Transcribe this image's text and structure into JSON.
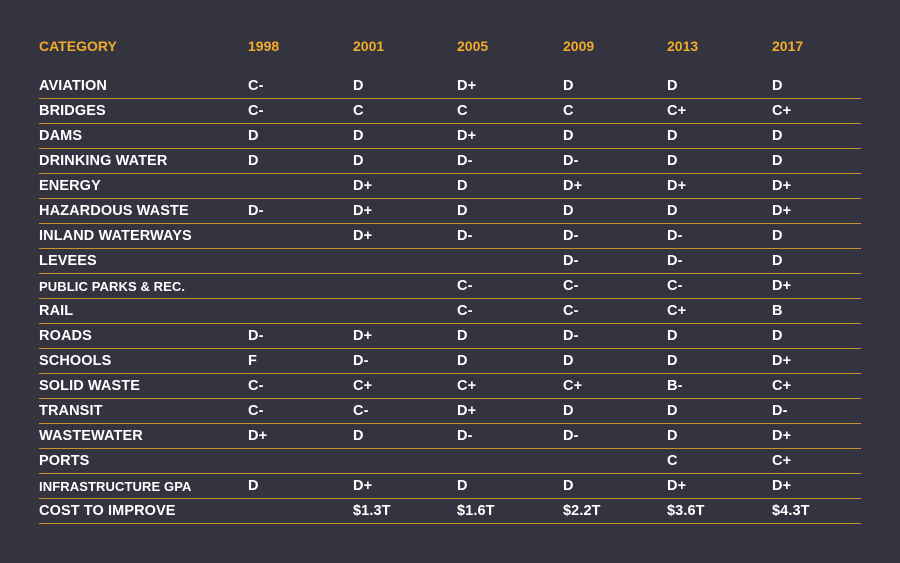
{
  "chart_data": {
    "type": "table",
    "columns": [
      "CATEGORY",
      "1998",
      "2001",
      "2005",
      "2009",
      "2013",
      "2017"
    ],
    "rows": [
      [
        "AVIATION",
        "C-",
        "D",
        "D+",
        "D",
        "D",
        "D"
      ],
      [
        "BRIDGES",
        "C-",
        "C",
        "C",
        "C",
        "C+",
        "C+"
      ],
      [
        "DAMS",
        "D",
        "D",
        "D+",
        "D",
        "D",
        "D"
      ],
      [
        "DRINKING WATER",
        "D",
        "D",
        "D-",
        "D-",
        "D",
        "D"
      ],
      [
        "ENERGY",
        "",
        "D+",
        "D",
        "D+",
        "D+",
        "D+"
      ],
      [
        "HAZARDOUS WASTE",
        "D-",
        "D+",
        "D",
        "D",
        "D",
        "D+"
      ],
      [
        "INLAND WATERWAYS",
        "",
        "D+",
        "D-",
        "D-",
        "D-",
        "D"
      ],
      [
        "LEVEES",
        "",
        "",
        "",
        "D-",
        "D-",
        "D"
      ],
      [
        "PUBLIC PARKS & REC.",
        "",
        "",
        "C-",
        "C-",
        "C-",
        "D+"
      ],
      [
        "RAIL",
        "",
        "",
        "C-",
        "C-",
        "C+",
        "B"
      ],
      [
        "ROADS",
        "D-",
        "D+",
        "D",
        "D-",
        "D",
        "D"
      ],
      [
        "SCHOOLS",
        "F",
        "D-",
        "D",
        "D",
        "D",
        "D+"
      ],
      [
        "SOLID WASTE",
        "C-",
        "C+",
        "C+",
        "C+",
        "B-",
        "C+"
      ],
      [
        "TRANSIT",
        "C-",
        "C-",
        "D+",
        "D",
        "D",
        "D-"
      ],
      [
        "WASTEWATER",
        "D+",
        "D",
        "D-",
        "D-",
        "D",
        "D+"
      ],
      [
        "PORTS",
        "",
        "",
        "",
        "",
        "C",
        "C+"
      ],
      [
        "INFRASTRUCTURE GPA",
        "D",
        "D+",
        "D",
        "D",
        "D+",
        "D+"
      ],
      [
        "COST TO IMPROVE",
        "",
        "$1.3T",
        "$1.6T",
        "$2.2T",
        "$3.6T",
        "$4.3T"
      ]
    ]
  },
  "colors": {
    "background": "#33343f",
    "header_text": "#f2ab2a",
    "divider": "#c8922a",
    "cell_text": "#ffffff"
  }
}
